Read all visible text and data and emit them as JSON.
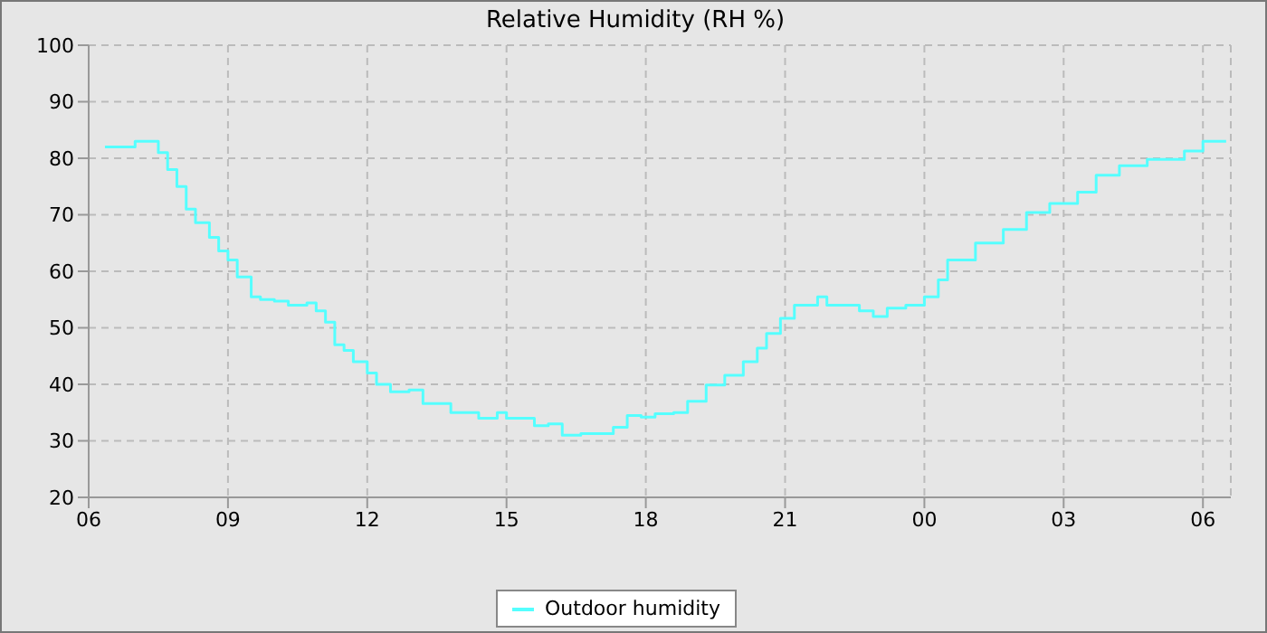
{
  "chart_data": {
    "type": "step",
    "title": "Relative Humidity (RH %)",
    "x": [
      6.35,
      6.9,
      7.0,
      7.3,
      7.5,
      7.7,
      7.9,
      8.1,
      8.3,
      8.6,
      8.8,
      9.0,
      9.2,
      9.5,
      9.7,
      10.0,
      10.3,
      10.7,
      10.9,
      11.1,
      11.3,
      11.5,
      11.7,
      12.0,
      12.2,
      12.5,
      12.9,
      13.2,
      13.8,
      14.4,
      14.8,
      15.0,
      15.3,
      15.6,
      15.9,
      16.2,
      16.6,
      17.1,
      17.3,
      17.6,
      17.9,
      18.2,
      18.6,
      18.9,
      19.3,
      19.7,
      20.1,
      20.4,
      20.6,
      20.9,
      21.2,
      21.7,
      21.9,
      22.6,
      22.9,
      23.2,
      23.6,
      24.0,
      24.3,
      24.5,
      25.1,
      25.7,
      26.2,
      26.7,
      27.3,
      27.7,
      28.2,
      28.8,
      29.6,
      30.0,
      30.5
    ],
    "series": [
      {
        "name": "Outdoor humidity",
        "color": "#55ffff",
        "values": [
          82,
          82,
          83,
          83,
          81,
          78,
          75,
          71,
          68.6,
          66,
          63.6,
          62,
          59,
          55.5,
          55,
          54.7,
          54,
          54.4,
          53,
          51,
          47,
          46,
          44,
          42,
          40,
          38.7,
          39,
          36.6,
          35,
          34,
          35,
          34,
          34,
          32.7,
          33,
          31,
          31.3,
          31.3,
          32.4,
          34.5,
          34.2,
          34.8,
          35,
          37,
          39.9,
          41.6,
          44,
          46.4,
          49,
          51.7,
          54,
          55.5,
          54,
          53,
          52,
          53.5,
          54,
          55.5,
          58.5,
          62,
          65,
          67.4,
          70.4,
          72,
          74,
          77,
          78.7,
          79.8,
          81.3,
          83,
          83
        ]
      }
    ],
    "xlim": [
      6,
      30.6
    ],
    "xticks": [
      {
        "value": 6,
        "label": "06"
      },
      {
        "value": 9,
        "label": "09"
      },
      {
        "value": 12,
        "label": "12"
      },
      {
        "value": 15,
        "label": "15"
      },
      {
        "value": 18,
        "label": "18"
      },
      {
        "value": 21,
        "label": "21"
      },
      {
        "value": 24,
        "label": "00"
      },
      {
        "value": 27,
        "label": "03"
      },
      {
        "value": 30,
        "label": "06"
      }
    ],
    "ylim": [
      20,
      100
    ],
    "yticks": [
      20,
      30,
      40,
      50,
      60,
      70,
      80,
      90,
      100
    ],
    "grid": true,
    "legend": "bottom",
    "marker": "none",
    "line_style": "solid"
  }
}
